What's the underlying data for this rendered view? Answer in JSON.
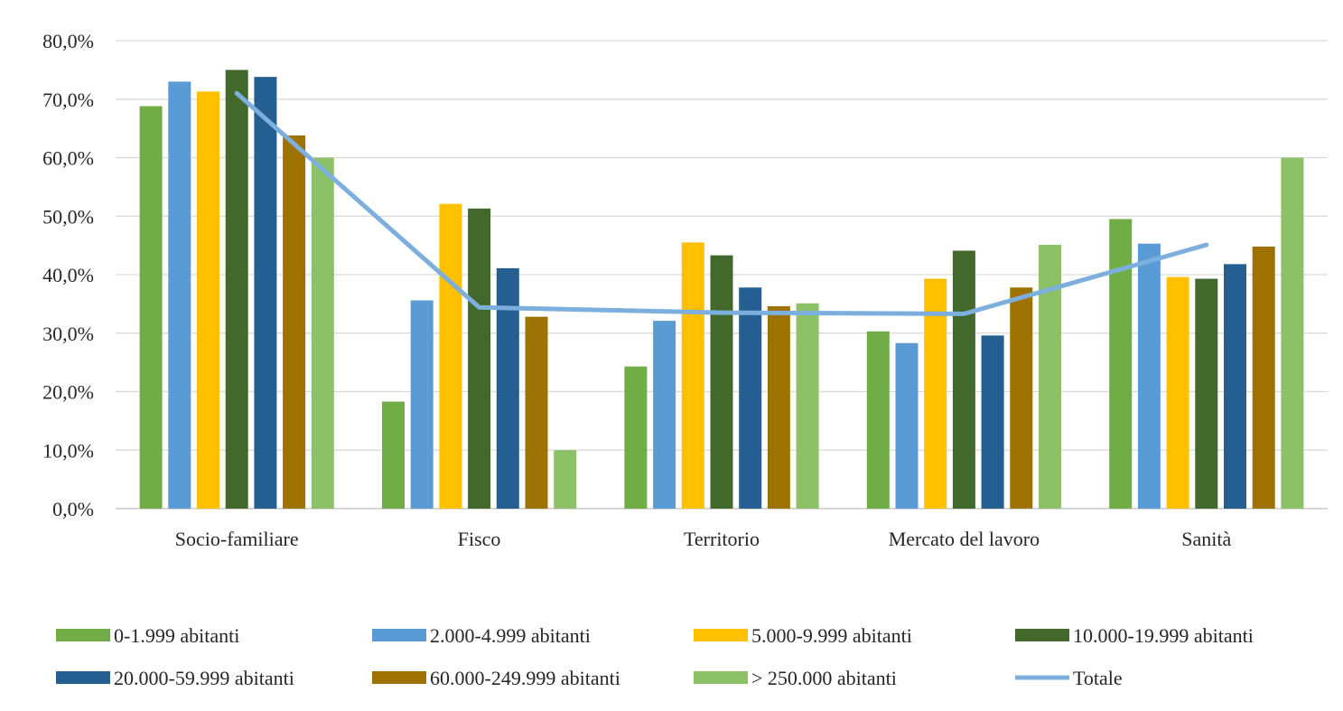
{
  "chart_data": {
    "type": "bar",
    "categories": [
      "Socio-familiare",
      "Fisco",
      "Territorio",
      "Mercato del lavoro",
      "Sanità"
    ],
    "series": [
      {
        "name": "0-1.999 abitanti",
        "color": "#70AD47",
        "values": [
          68.8,
          18.3,
          24.3,
          30.3,
          49.5
        ]
      },
      {
        "name": "2.000-4.999 abitanti",
        "color": "#5B9BD5",
        "values": [
          73.0,
          35.6,
          32.1,
          28.3,
          45.3
        ]
      },
      {
        "name": "5.000-9.999 abitanti",
        "color": "#FFC000",
        "values": [
          71.3,
          52.1,
          45.5,
          39.3,
          39.6
        ]
      },
      {
        "name": "10.000-19.999 abitanti",
        "color": "#43682B",
        "values": [
          75.0,
          51.3,
          43.3,
          44.1,
          39.3
        ]
      },
      {
        "name": "20.000-59.999 abitanti",
        "color": "#255E91",
        "values": [
          73.8,
          41.1,
          37.8,
          29.6,
          41.8
        ]
      },
      {
        "name": "60.000-249.999 abitanti",
        "color": "#9E7200",
        "values": [
          63.8,
          32.8,
          34.6,
          37.8,
          44.8
        ]
      },
      {
        "name": "> 250.000 abitanti",
        "color": "#8CC168",
        "values": [
          60.0,
          10.0,
          35.1,
          45.1,
          60.0
        ]
      }
    ],
    "line_series": {
      "name": "Totale",
      "color": "#7CAFDD",
      "values": [
        71.0,
        34.4,
        33.5,
        33.3,
        45.1
      ]
    },
    "yticks": [
      "0,0%",
      "10,0%",
      "20,0%",
      "30,0%",
      "40,0%",
      "50,0%",
      "60,0%",
      "70,0%",
      "80,0%"
    ],
    "ylim": [
      0,
      80
    ],
    "grid": true,
    "legend_position": "bottom",
    "title": "",
    "xlabel": "",
    "ylabel": ""
  }
}
